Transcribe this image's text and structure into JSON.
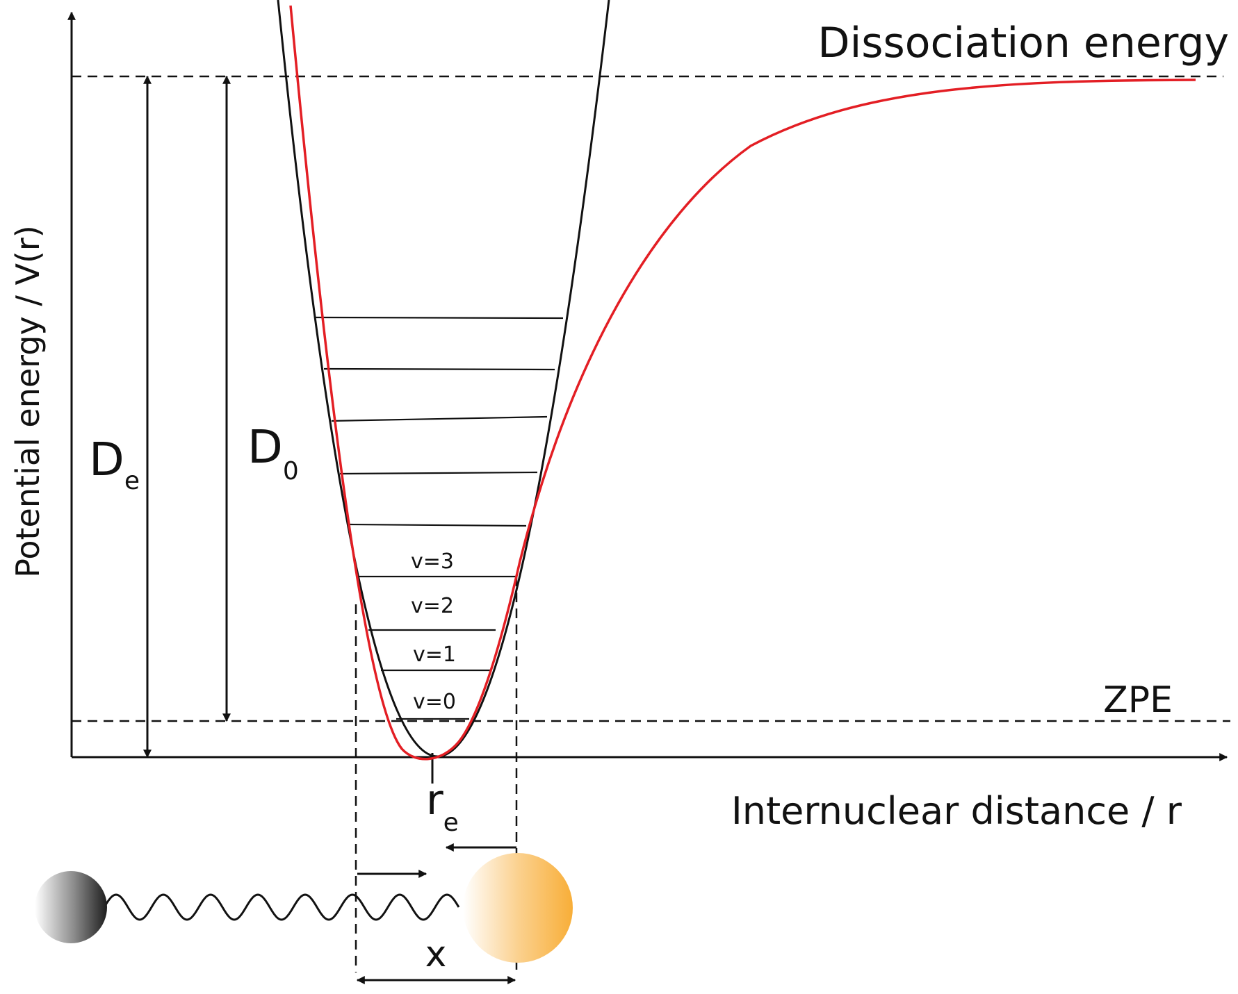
{
  "labels": {
    "dissociation_energy": "Dissociation energy",
    "y_axis": "Potential energy / V(r)",
    "x_axis": "Internuclear distance / r",
    "zpe": "ZPE",
    "de_main": "D",
    "de_sub": "e",
    "d0_main": "D",
    "d0_sub": "0",
    "re_main": "r",
    "re_sub": "e",
    "x": "x"
  },
  "vibrational_levels": [
    "v=0",
    "v=1",
    "v=2",
    "v=3"
  ],
  "colors": {
    "morse_curve": "#e31e24",
    "harmonic_curve": "#111111",
    "atom_left": "#3a3a3a",
    "atom_right": "#f9b23f"
  }
}
